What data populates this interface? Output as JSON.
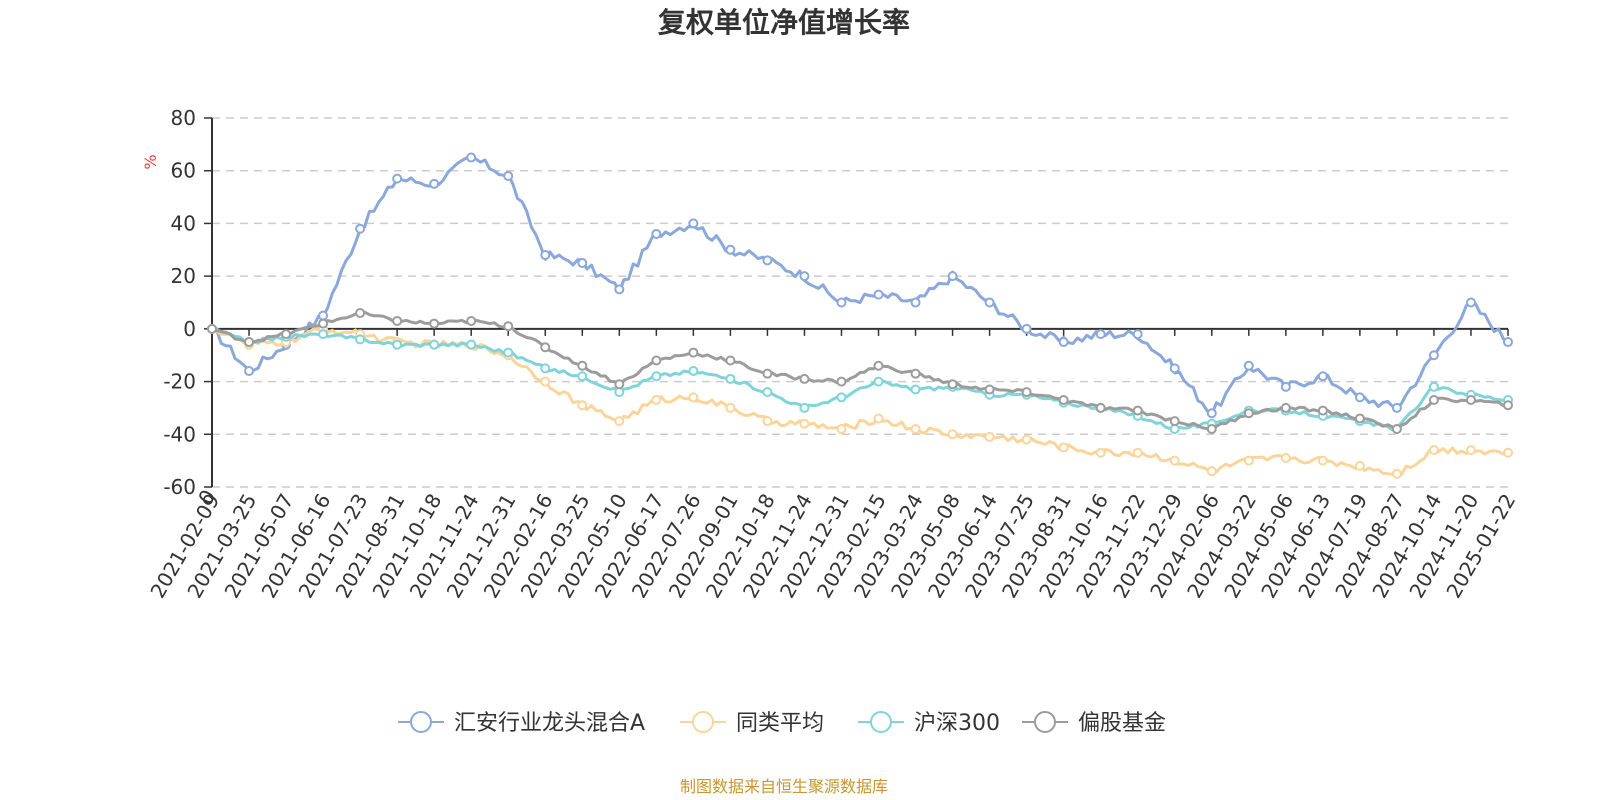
{
  "chart_data": {
    "type": "line",
    "title": "复权单位净值增长率",
    "ylabel": "%",
    "ylim": [
      -60,
      80
    ],
    "yticks": [
      80,
      60,
      40,
      20,
      0,
      -20,
      -40,
      -60
    ],
    "x_origin_label": "0",
    "categories": [
      "2021-02-09",
      "2021-03-25",
      "2021-05-07",
      "2021-06-16",
      "2021-07-23",
      "2021-08-31",
      "2021-10-18",
      "2021-11-24",
      "2021-12-31",
      "2022-02-16",
      "2022-03-25",
      "2022-05-10",
      "2022-06-17",
      "2022-07-26",
      "2022-09-01",
      "2022-10-18",
      "2022-11-24",
      "2022-12-31",
      "2023-02-15",
      "2023-03-24",
      "2023-05-08",
      "2023-06-14",
      "2023-07-25",
      "2023-08-31",
      "2023-10-16",
      "2023-11-22",
      "2023-12-29",
      "2024-02-06",
      "2024-03-22",
      "2024-05-06",
      "2024-06-13",
      "2024-07-19",
      "2024-08-27",
      "2024-10-14",
      "2024-11-20",
      "2025-01-22"
    ],
    "series": [
      {
        "name": "汇安行业龙头混合A",
        "color": "#8AA8DB",
        "values": [
          0,
          -16,
          -6,
          5,
          38,
          57,
          55,
          65,
          58,
          28,
          25,
          15,
          36,
          40,
          30,
          26,
          20,
          10,
          13,
          10,
          20,
          10,
          0,
          -5,
          -2,
          -2,
          -15,
          -32,
          -14,
          -22,
          -18,
          -26,
          -30,
          -10,
          10,
          -5
        ]
      },
      {
        "name": "同类平均",
        "color": "#FBD49A",
        "values": [
          0,
          -6,
          -5,
          0,
          -2,
          -5,
          -6,
          -6,
          -10,
          -20,
          -29,
          -35,
          -27,
          -26,
          -30,
          -35,
          -36,
          -38,
          -34,
          -38,
          -40,
          -41,
          -42,
          -45,
          -47,
          -47,
          -50,
          -54,
          -50,
          -49,
          -50,
          -52,
          -55,
          -46,
          -46,
          -47
        ]
      },
      {
        "name": "沪深300",
        "color": "#7FD4DA",
        "values": [
          0,
          -5,
          -3,
          -2,
          -4,
          -6,
          -6,
          -6,
          -9,
          -15,
          -18,
          -24,
          -18,
          -16,
          -19,
          -24,
          -30,
          -26,
          -20,
          -23,
          -22,
          -25,
          -25,
          -28,
          -30,
          -33,
          -38,
          -36,
          -31,
          -31,
          -33,
          -35,
          -38,
          -22,
          -25,
          -27
        ]
      },
      {
        "name": "偏股基金",
        "color": "#9C9C9C",
        "values": [
          0,
          -5,
          -2,
          2,
          6,
          3,
          2,
          3,
          1,
          -7,
          -14,
          -21,
          -12,
          -9,
          -12,
          -17,
          -19,
          -20,
          -14,
          -17,
          -21,
          -23,
          -24,
          -27,
          -30,
          -31,
          -35,
          -38,
          -32,
          -30,
          -31,
          -34,
          -38,
          -27,
          -27,
          -29
        ]
      }
    ],
    "legend_position": "bottom-center",
    "grid": "horizontal-dashed"
  },
  "source_note": "制图数据来自恒生聚源数据库"
}
